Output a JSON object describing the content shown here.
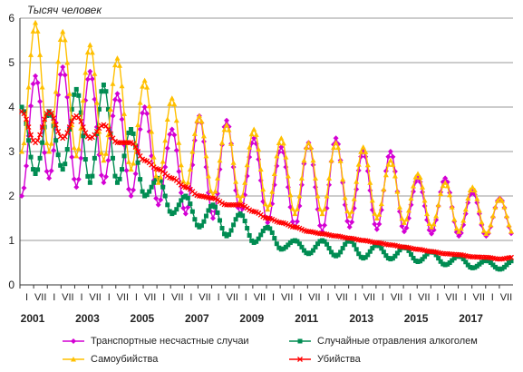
{
  "chart_data": {
    "type": "line",
    "unit_label": "Тысяч человек",
    "y_ticks": [
      "0",
      "1",
      "2",
      "3",
      "4",
      "5",
      "6"
    ],
    "ylim": [
      0,
      6
    ],
    "x_tick_labels": [
      "I",
      "VII",
      "I",
      "VII",
      "I",
      "VII",
      "I",
      "VII",
      "I",
      "VII",
      "I",
      "VII",
      "I",
      "VII",
      "I",
      "VII",
      "I",
      "VII",
      "I",
      "VII",
      "I",
      "VII",
      "I",
      "VII",
      "I",
      "VII",
      "I",
      "VII",
      "I",
      "VII",
      "I",
      "VII",
      "I",
      "VII",
      "I",
      "VII"
    ],
    "year_labels": [
      "2001",
      "2003",
      "2005",
      "2007",
      "2009",
      "2011",
      "2013",
      "2015",
      "2017"
    ],
    "grid": "horizontal",
    "legend_position": "bottom",
    "series": [
      {
        "name": "Транспортные несчастные случаи",
        "color": "#d400d4",
        "marker": "diamond",
        "seasonal": {
          "jan": [
            2.0,
            2.4,
            2.2,
            2.3,
            2.0,
            1.8,
            1.6,
            1.5,
            1.6,
            1.4,
            1.3,
            1.2,
            1.3,
            1.25,
            1.2,
            1.15,
            1.1,
            1.1
          ],
          "jul": [
            4.7,
            4.9,
            4.8,
            4.3,
            4.0,
            3.5,
            3.8,
            3.7,
            3.3,
            3.1,
            3.2,
            3.3,
            3.0,
            3.0,
            2.4,
            2.4,
            2.1,
            1.95
          ]
        }
      },
      {
        "name": "Случайные отравления алкоголем",
        "color": "#008c52",
        "marker": "square",
        "seasonal": {
          "jan": [
            4.0,
            3.9,
            4.4,
            4.5,
            3.5,
            2.4,
            2.0,
            1.8,
            1.6,
            1.3,
            1.0,
            1.0,
            1.0,
            0.9,
            0.85,
            0.75,
            0.65,
            0.55
          ],
          "jul": [
            2.5,
            2.6,
            2.3,
            2.3,
            2.0,
            1.6,
            1.3,
            1.1,
            0.95,
            0.8,
            0.7,
            0.65,
            0.6,
            0.58,
            0.52,
            0.45,
            0.38,
            0.35
          ]
        }
      },
      {
        "name": "Самоубийства",
        "color": "#ffc000",
        "marker": "triangle",
        "seasonal": {
          "jan": [
            3.0,
            3.0,
            2.9,
            2.8,
            2.6,
            2.3,
            2.2,
            2.0,
            1.9,
            1.7,
            1.6,
            1.6,
            1.55,
            1.5,
            1.4,
            1.3,
            1.2,
            1.15
          ],
          "jul": [
            5.9,
            5.7,
            5.4,
            5.1,
            4.6,
            4.2,
            3.8,
            3.6,
            3.5,
            3.3,
            3.2,
            3.2,
            3.1,
            2.8,
            2.5,
            2.3,
            2.2,
            1.95
          ]
        }
      },
      {
        "name": "Убийства",
        "color": "#ff0000",
        "marker": "x",
        "seasonal": {
          "jan": [
            3.9,
            3.9,
            3.8,
            3.6,
            3.2,
            2.6,
            2.2,
            1.95,
            1.8,
            1.5,
            1.3,
            1.15,
            1.05,
            0.95,
            0.85,
            0.75,
            0.68,
            0.62
          ],
          "jul": [
            3.2,
            3.3,
            3.3,
            3.2,
            2.8,
            2.4,
            2.0,
            1.8,
            1.65,
            1.4,
            1.2,
            1.1,
            1.0,
            0.9,
            0.8,
            0.7,
            0.63,
            0.58
          ]
        }
      }
    ]
  }
}
